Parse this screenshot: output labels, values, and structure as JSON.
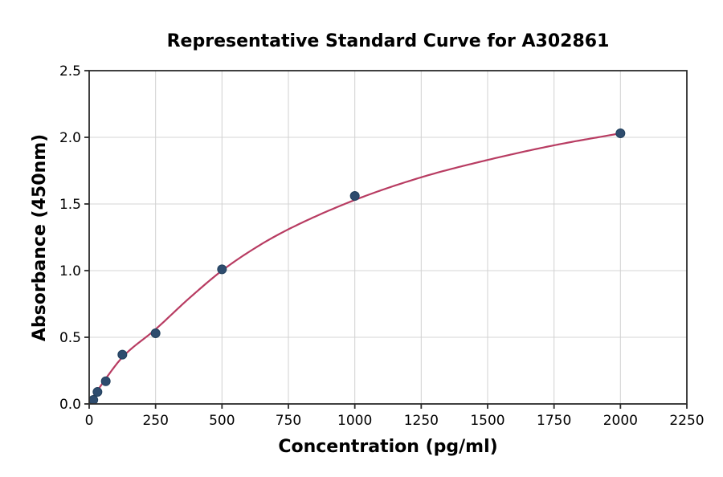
{
  "chart_data": {
    "type": "scatter",
    "title": "Representative Standard Curve for A302861",
    "xlabel": "Concentration (pg/ml)",
    "ylabel": "Absorbance (450nm)",
    "xlim": [
      0,
      2250
    ],
    "ylim": [
      0,
      2.5
    ],
    "xticks": [
      0,
      250,
      500,
      750,
      1000,
      1250,
      1500,
      1750,
      2000,
      2250
    ],
    "yticks": [
      0.0,
      0.5,
      1.0,
      1.5,
      2.0,
      2.5
    ],
    "grid": true,
    "legend": false,
    "series": [
      {
        "name": "standard-points",
        "type": "scatter",
        "color": "#2e4c6e",
        "edge_color": "#22405d",
        "marker_radius": 5.5,
        "x": [
          15.6,
          31.25,
          62.5,
          125,
          250,
          500,
          1000,
          2000
        ],
        "y": [
          0.03,
          0.09,
          0.17,
          0.37,
          0.53,
          1.01,
          1.56,
          2.03
        ]
      },
      {
        "name": "fitted-curve",
        "type": "line",
        "color": "#b83c62",
        "line_width": 2.2,
        "x": [
          0,
          31.25,
          62.5,
          125,
          250,
          375,
          500,
          625,
          750,
          1000,
          1250,
          1500,
          1750,
          2000
        ],
        "y": [
          0.01,
          0.1,
          0.19,
          0.35,
          0.56,
          0.79,
          1.0,
          1.17,
          1.31,
          1.53,
          1.7,
          1.83,
          1.94,
          2.03
        ]
      }
    ]
  },
  "style": {
    "background_color": "#ffffff",
    "grid_color": "#d4d4d4",
    "spine_color": "#2b2b2b",
    "tick_color": "#2b2b2b",
    "text_color": "#000000"
  }
}
